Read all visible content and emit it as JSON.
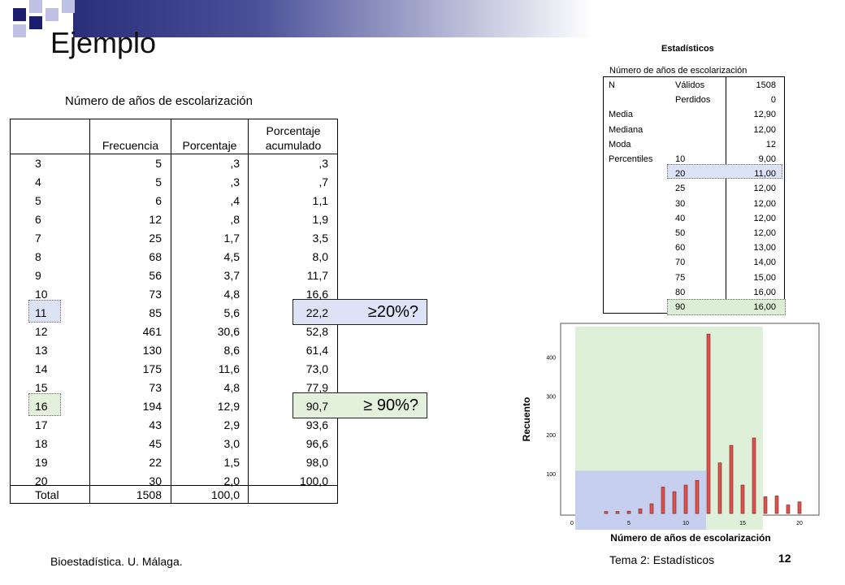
{
  "slide": {
    "title": "Ejemplo"
  },
  "freq_table": {
    "title": "Número de años de escolarización",
    "headers": {
      "frecuencia": "Frecuencia",
      "porcentaje": "Porcentaje",
      "acum_line1": "Porcentaje",
      "acum_line2": "acumulado"
    },
    "rows": [
      [
        "3",
        "5",
        ",3",
        ",3"
      ],
      [
        "4",
        "5",
        ",3",
        ",7"
      ],
      [
        "5",
        "6",
        ",4",
        "1,1"
      ],
      [
        "6",
        "12",
        ",8",
        "1,9"
      ],
      [
        "7",
        "25",
        "1,7",
        "3,5"
      ],
      [
        "8",
        "68",
        "4,5",
        "8,0"
      ],
      [
        "9",
        "56",
        "3,7",
        "11,7"
      ],
      [
        "10",
        "73",
        "4,8",
        "16,6"
      ],
      [
        "11",
        "85",
        "5,6",
        "22,2"
      ],
      [
        "12",
        "461",
        "30,6",
        "52,8"
      ],
      [
        "13",
        "130",
        "8,6",
        "61,4"
      ],
      [
        "14",
        "175",
        "11,6",
        "73,0"
      ],
      [
        "15",
        "73",
        "4,8",
        "77,9"
      ],
      [
        "16",
        "194",
        "12,9",
        "90,7"
      ],
      [
        "17",
        "43",
        "2,9",
        "93,6"
      ],
      [
        "18",
        "45",
        "3,0",
        "96,6"
      ],
      [
        "19",
        "22",
        "1,5",
        "98,0"
      ],
      [
        "20",
        "30",
        "2,0",
        "100,0"
      ],
      [
        "Total",
        "1508",
        "100,0",
        ""
      ]
    ],
    "question_20": "≥20%?",
    "question_90": "≥ 90%?",
    "highlight_colors": {
      "blue": "#dde3f7",
      "green": "#e3f0dc"
    }
  },
  "stats_table": {
    "title": "Estadísticos",
    "subtitle": "Número de años de escolarización",
    "rows": [
      [
        "N",
        "Válidos",
        "1508"
      ],
      [
        "",
        "Perdidos",
        "0"
      ],
      [
        "Media",
        "",
        "12,90"
      ],
      [
        "Mediana",
        "",
        "12,00"
      ],
      [
        "Moda",
        "",
        "12"
      ],
      [
        "Percentiles",
        "10",
        "9,00"
      ],
      [
        "",
        "20",
        "11,00"
      ],
      [
        "",
        "25",
        "12,00"
      ],
      [
        "",
        "30",
        "12,00"
      ],
      [
        "",
        "40",
        "12,00"
      ],
      [
        "",
        "50",
        "12,00"
      ],
      [
        "",
        "60",
        "13,00"
      ],
      [
        "",
        "70",
        "14,00"
      ],
      [
        "",
        "75",
        "15,00"
      ],
      [
        "",
        "80",
        "16,00"
      ],
      [
        "",
        "90",
        "16,00"
      ]
    ]
  },
  "chart_data": {
    "type": "bar",
    "xlabel": "Número de años de escolarización",
    "ylabel": "Recuento",
    "x": [
      3,
      4,
      5,
      6,
      7,
      8,
      9,
      10,
      11,
      12,
      13,
      14,
      15,
      16,
      17,
      18,
      19,
      20
    ],
    "values": [
      5,
      5,
      6,
      12,
      25,
      68,
      56,
      73,
      85,
      461,
      130,
      175,
      73,
      194,
      43,
      45,
      22,
      30
    ],
    "xlim": [
      0,
      21
    ],
    "ylim": [
      0,
      480
    ],
    "xticks": [
      "0",
      "5",
      "10",
      "15",
      "20"
    ],
    "yticks": [
      "100",
      "200",
      "300",
      "400"
    ],
    "bar_color": "#d9534f",
    "shaded_regions": [
      {
        "x_from": 0,
        "x_to": 11.5,
        "y_to": 110,
        "color": "#c6cfee"
      },
      {
        "x_from": 0,
        "x_to": 16.5,
        "y_to": 480,
        "color": "#dff0d8"
      }
    ]
  },
  "footer": {
    "left": "Bioestadística. U. Málaga.",
    "right": "Tema 2: Estadísticos",
    "page": "12"
  }
}
